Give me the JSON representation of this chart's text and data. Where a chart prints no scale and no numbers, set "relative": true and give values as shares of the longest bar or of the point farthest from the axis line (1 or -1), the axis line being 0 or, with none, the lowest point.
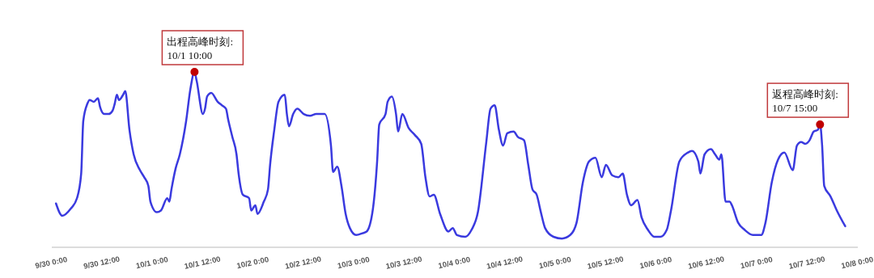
{
  "chart_data": {
    "type": "line",
    "relative": true,
    "color": "#3a3adf",
    "xlim": [
      "--09-30T00:00",
      "--10-08T00:00"
    ],
    "xticks": [
      {
        "value": "--09-30T00:00",
        "label": "9/30 0:00"
      },
      {
        "value": "--09-30T12:00",
        "label": "9/30 12:00"
      },
      {
        "value": "--10-01T00:00",
        "label": "10/1 0:00"
      },
      {
        "value": "--10-01T12:00",
        "label": "10/1 12:00"
      },
      {
        "value": "--10-02T00:00",
        "label": "10/2 0:00"
      },
      {
        "value": "--10-02T12:00",
        "label": "10/2 12:00"
      },
      {
        "value": "--10-03T00:00",
        "label": "10/3 0:00"
      },
      {
        "value": "--10-03T12:00",
        "label": "10/3 12:00"
      },
      {
        "value": "--10-04T00:00",
        "label": "10/4 0:00"
      },
      {
        "value": "--10-04T12:00",
        "label": "10/4 12:00"
      },
      {
        "value": "--10-05T00:00",
        "label": "10/5 0:00"
      },
      {
        "value": "--10-05T12:00",
        "label": "10/5 12:00"
      },
      {
        "value": "--10-06T00:00",
        "label": "10/6 0:00"
      },
      {
        "value": "--10-06T12:00",
        "label": "10/6 12:00"
      },
      {
        "value": "--10-07T00:00",
        "label": "10/7 0:00"
      },
      {
        "value": "--10-07T12:00",
        "label": "10/7 12:00"
      },
      {
        "value": "--10-08T00:00",
        "label": "10/8 0:00"
      }
    ],
    "x": [
      "--09-30T01:00",
      "--09-30T02:30",
      "--09-30T04:30",
      "--09-30T06:00",
      "--09-30T07:00",
      "--09-30T07:30",
      "--09-30T08:30",
      "--09-30T09:00",
      "--09-30T10:00",
      "--09-30T11:00",
      "--09-30T11:30",
      "--09-30T12:30",
      "--09-30T13:30",
      "--09-30T14:30",
      "--09-30T15:00",
      "--09-30T15:30",
      "--09-30T16:00",
      "--09-30T17:00",
      "--09-30T17:30",
      "--09-30T18:30",
      "--09-30T19:30",
      "--09-30T21:00",
      "--09-30T22:00",
      "--09-30T23:00",
      "--09-30T23:30",
      "--10-01T01:00",
      "--10-01T02:00",
      "--10-01T03:30",
      "--10-01T04:00",
      "--10-01T04:30",
      "--10-01T05:30",
      "--10-01T06:30",
      "--10-01T08:00",
      "--10-01T09:00",
      "--10-01T10:00",
      "--10-01T10:30",
      "--10-01T12:00",
      "--10-01T12:30",
      "--10-01T13:00",
      "--10-01T14:00",
      "--10-01T15:30",
      "--10-01T16:30",
      "--10-01T17:30",
      "--10-01T18:00",
      "--10-01T19:00",
      "--10-01T20:00",
      "--10-01T20:30",
      "--10-01T21:30",
      "--10-01T23:00",
      "--10-01T23:30",
      "--10-02T00:30",
      "--10-02T01:00",
      "--10-02T02:30",
      "--10-02T03:30",
      "--10-02T04:00",
      "--10-02T05:00",
      "--10-02T06:00",
      "--10-02T07:30",
      "--10-02T08:00",
      "--10-02T08:30",
      "--10-02T09:30",
      "--10-02T10:30",
      "--10-02T12:00",
      "--10-02T13:30",
      "--10-02T15:00",
      "--10-02T17:00",
      "--10-02T18:30",
      "--10-02T19:00",
      "--10-02T20:00",
      "--10-02T21:00",
      "--10-02T22:00",
      "--10-02T23:00",
      "--10-03T00:30",
      "--10-03T02:00",
      "--10-03T03:00",
      "--10-03T04:30",
      "--10-03T05:30",
      "--10-03T06:00",
      "--10-03T07:30",
      "--10-03T08:00",
      "--10-03T09:00",
      "--10-03T10:00",
      "--10-03T10:30",
      "--10-03T11:30",
      "--10-03T13:00",
      "--10-03T14:30",
      "--10-03T16:00",
      "--10-03T17:00",
      "--10-03T18:00",
      "--10-03T19:00",
      "--10-03T20:30",
      "--10-03T22:30",
      "--10-03T23:30",
      "--10-04T00:30",
      "--10-04T02:30",
      "--10-04T04:00",
      "--10-04T05:30",
      "--10-04T07:30",
      "--10-04T08:30",
      "--10-04T09:30",
      "--10-04T10:30",
      "--10-04T11:30",
      "--10-04T12:30",
      "--10-04T14:00",
      "--10-04T15:00",
      "--10-04T16:30",
      "--10-04T17:30",
      "--10-04T18:30",
      "--10-04T19:30",
      "--10-04T20:30",
      "--10-04T21:30",
      "--10-04T23:30",
      "--10-05T01:30",
      "--10-05T03:30",
      "--10-05T05:00",
      "--10-05T06:30",
      "--10-05T08:00",
      "--10-05T09:30",
      "--10-05T11:00",
      "--10-05T12:00",
      "--10-05T13:30",
      "--10-05T15:00",
      "--10-05T16:00",
      "--10-05T17:00",
      "--10-05T18:00",
      "--10-05T19:30",
      "--10-05T20:30",
      "--10-05T22:00",
      "--10-05T23:30",
      "--10-06T01:00",
      "--10-06T02:30",
      "--10-06T03:30",
      "--10-06T05:30",
      "--10-06T07:30",
      "--10-06T08:30",
      "--10-06T10:00",
      "--10-06T10:30",
      "--10-06T11:30",
      "--10-06T13:00",
      "--10-06T14:00",
      "--10-06T15:00",
      "--10-06T15:30",
      "--10-06T16:30",
      "--10-06T17:30",
      "--10-06T18:00",
      "--10-06T19:30",
      "--10-06T21:00",
      "--10-06T23:00",
      "--10-07T01:00",
      "--10-07T02:00",
      "--10-07T03:30",
      "--10-07T05:00",
      "--10-07T06:30",
      "--10-07T08:30",
      "--10-07T09:30",
      "--10-07T10:30",
      "--10-07T11:30",
      "--10-07T12:30",
      "--10-07T13:30",
      "--10-07T14:30",
      "--10-07T15:00",
      "--10-07T15:30",
      "--10-07T16:00",
      "--10-07T17:30",
      "--10-07T19:00",
      "--10-07T21:00"
    ],
    "values": [
      0.25,
      0.18,
      0.22,
      0.28,
      0.42,
      0.72,
      0.82,
      0.84,
      0.83,
      0.85,
      0.8,
      0.76,
      0.76,
      0.78,
      0.82,
      0.87,
      0.84,
      0.87,
      0.89,
      0.67,
      0.53,
      0.44,
      0.4,
      0.35,
      0.26,
      0.2,
      0.21,
      0.28,
      0.26,
      0.33,
      0.45,
      0.53,
      0.72,
      0.9,
      1.0,
      0.95,
      0.76,
      0.79,
      0.86,
      0.88,
      0.83,
      0.81,
      0.79,
      0.73,
      0.63,
      0.53,
      0.42,
      0.3,
      0.28,
      0.21,
      0.24,
      0.19,
      0.26,
      0.33,
      0.47,
      0.67,
      0.83,
      0.87,
      0.76,
      0.69,
      0.76,
      0.79,
      0.76,
      0.75,
      0.76,
      0.76,
      0.58,
      0.43,
      0.46,
      0.35,
      0.19,
      0.11,
      0.07,
      0.08,
      0.09,
      0.22,
      0.49,
      0.7,
      0.76,
      0.83,
      0.86,
      0.76,
      0.66,
      0.76,
      0.68,
      0.64,
      0.59,
      0.4,
      0.29,
      0.3,
      0.19,
      0.09,
      0.11,
      0.07,
      0.06,
      0.1,
      0.2,
      0.6,
      0.79,
      0.81,
      0.67,
      0.58,
      0.65,
      0.66,
      0.63,
      0.61,
      0.47,
      0.33,
      0.3,
      0.2,
      0.11,
      0.06,
      0.05,
      0.07,
      0.14,
      0.37,
      0.49,
      0.51,
      0.4,
      0.47,
      0.41,
      0.4,
      0.42,
      0.3,
      0.24,
      0.27,
      0.17,
      0.1,
      0.06,
      0.06,
      0.1,
      0.21,
      0.49,
      0.54,
      0.55,
      0.49,
      0.42,
      0.53,
      0.56,
      0.53,
      0.5,
      0.53,
      0.26,
      0.26,
      0.24,
      0.14,
      0.1,
      0.07,
      0.07,
      0.14,
      0.37,
      0.5,
      0.54,
      0.44,
      0.58,
      0.6,
      0.59,
      0.61,
      0.66,
      0.67,
      0.7,
      0.58,
      0.35,
      0.29,
      0.21,
      0.12
    ],
    "annotations": [
      {
        "text": "出程高峰时刻:\n10/1 10:00",
        "x": "--10-01T10:00",
        "y": 1.0
      },
      {
        "text": "返程高峰时刻:\n10/7 15:00",
        "x": "--10-07T15:00",
        "y": 0.7
      }
    ]
  }
}
